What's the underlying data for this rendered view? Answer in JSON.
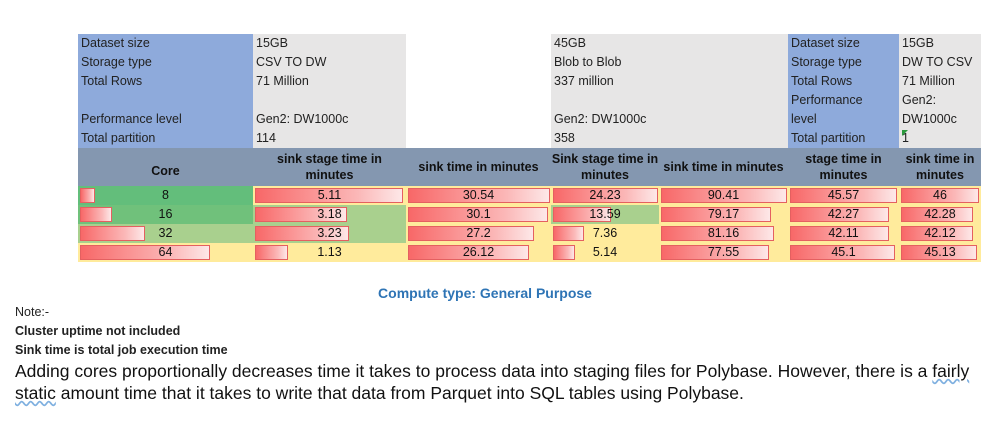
{
  "info_blocks": [
    {
      "labels": [
        "Dataset size",
        "Storage type",
        "Total Rows",
        "",
        "Performance level",
        "Total partition"
      ],
      "values": [
        "15GB",
        "CSV TO DW",
        "71 Million",
        "",
        "Gen2: DW1000c",
        "114"
      ]
    },
    {
      "values": [
        "45GB",
        "Blob to Blob",
        "337 million",
        "",
        "Gen2: DW1000c",
        "358"
      ]
    },
    {
      "labels": [
        "Dataset size",
        "Storage type",
        "Total Rows",
        "Performance",
        "level",
        "Total partition"
      ],
      "values": [
        "15GB",
        "DW TO CSV",
        "71 Million",
        "Gen2:",
        "DW1000c",
        "1"
      ]
    }
  ],
  "table": {
    "headers": [
      "Core",
      "sink stage time in minutes",
      "sink time in minutes",
      "Sink stage time in minutes",
      "sink time in minutes",
      "stage time in minutes",
      "sink time in minutes"
    ],
    "rows": [
      {
        "core": "8",
        "values": [
          "5.11",
          "30.54",
          "24.23",
          "90.41",
          "45.57",
          "46"
        ]
      },
      {
        "core": "16",
        "values": [
          "3.18",
          "30.1",
          "13.59",
          "79.17",
          "42.27",
          "42.28"
        ]
      },
      {
        "core": "32",
        "values": [
          "3.23",
          "27.2",
          "7.36",
          "81.16",
          "42.11",
          "42.12"
        ]
      },
      {
        "core": "64",
        "values": [
          "1.13",
          "26.12",
          "5.14",
          "77.55",
          "45.1",
          "45.13"
        ]
      }
    ],
    "core_bar_fraction": [
      0.09,
      0.19,
      0.38,
      0.76
    ],
    "colors": {
      "green": "#63be7b",
      "lightgreen": "#a9d08e",
      "yellow": "#ffeb9c",
      "bar": "#f86868"
    }
  },
  "caption": "Compute type: General Purpose",
  "notes": {
    "title": "Note:-",
    "line1": "Cluster uptime not included",
    "line2": "Sink time is total job execution time"
  },
  "paragraph": {
    "before": "Adding cores proportionally decreases time it takes to process data into staging files for Polybase. However, there is a ",
    "spell": "fairly static",
    "after": " amount time that it takes to write that data from Parquet into SQL tables using Polybase."
  }
}
